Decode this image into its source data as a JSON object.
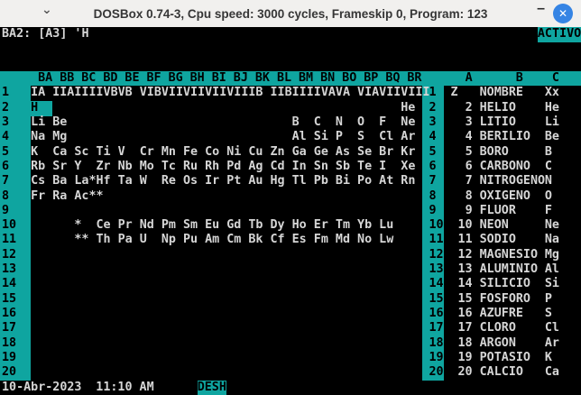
{
  "titlebar": {
    "title": "DOSBox 0.74-3, Cpu speed:    3000 cycles, Frameskip  0, Program:     123",
    "icons": {
      "menu_chevron": "⌄",
      "minimize": "–",
      "close": "✕"
    }
  },
  "control_panel": {
    "cell_reference": "BA2: [A3] 'H",
    "mode_indicator": "ACTIVO"
  },
  "left_window": {
    "col_headers": [
      "BA",
      "BB",
      "BC",
      "BD",
      "BE",
      "BF",
      "BG",
      "BH",
      "BI",
      "BJ",
      "BK",
      "BL",
      "BM",
      "BN",
      "BO",
      "BP",
      "BQ",
      "BR"
    ],
    "rows": [
      {
        "num": 1,
        "cells": [
          "IA",
          "IIA",
          "III",
          "IVB",
          "VB",
          "VIB",
          "VII",
          "VII",
          "VII",
          "VII",
          "IB",
          "IIB",
          "III",
          "IVA",
          "VA",
          "VIA",
          "VII",
          "VIII"
        ]
      },
      {
        "num": 2,
        "cursor_col": 0,
        "cells": [
          "H",
          "",
          "",
          "",
          "",
          "",
          "",
          "",
          "",
          "",
          "",
          "",
          "",
          "",
          "",
          "",
          "",
          "He"
        ]
      },
      {
        "num": 3,
        "cells": [
          "Li",
          "Be",
          "",
          "",
          "",
          "",
          "",
          "",
          "",
          "",
          "",
          "",
          "B",
          "C",
          "N",
          "O",
          "F",
          "Ne"
        ]
      },
      {
        "num": 4,
        "cells": [
          "Na",
          "Mg",
          "",
          "",
          "",
          "",
          "",
          "",
          "",
          "",
          "",
          "",
          "Al",
          "Si",
          "P",
          "S",
          "Cl",
          "Ar"
        ]
      },
      {
        "num": 5,
        "cells": [
          "K",
          "Ca",
          "Sc",
          "Ti",
          "V",
          "Cr",
          "Mn",
          "Fe",
          "Co",
          "Ni",
          "Cu",
          "Zn",
          "Ga",
          "Ge",
          "As",
          "Se",
          "Br",
          "Kr"
        ]
      },
      {
        "num": 6,
        "cells": [
          "Rb",
          "Sr",
          "Y",
          "Zr",
          "Nb",
          "Mo",
          "Tc",
          "Ru",
          "Rh",
          "Pd",
          "Ag",
          "Cd",
          "In",
          "Sn",
          "Sb",
          "Te",
          "I",
          "Xe"
        ]
      },
      {
        "num": 7,
        "cells": [
          "Cs",
          "Ba",
          "La*",
          "Hf",
          "Ta",
          "W",
          "Re",
          "Os",
          "Ir",
          "Pt",
          "Au",
          "Hg",
          "Tl",
          "Pb",
          "Bi",
          "Po",
          "At",
          "Rn"
        ]
      },
      {
        "num": 8,
        "cells": [
          "Fr",
          "Ra",
          "Ac*",
          "*"
        ]
      },
      {
        "num": 9,
        "cells": []
      },
      {
        "num": 10,
        "cells": [
          "",
          "",
          "*",
          "Ce",
          "Pr",
          "Nd",
          "Pm",
          "Sm",
          "Eu",
          "Gd",
          "Tb",
          "Dy",
          "Ho",
          "Er",
          "Tm",
          "Yb",
          "Lu"
        ]
      },
      {
        "num": 11,
        "cells": [
          "",
          "",
          "**",
          "Th",
          "Pa",
          "U",
          "Np",
          "Pu",
          "Am",
          "Cm",
          "Bk",
          "Cf",
          "Es",
          "Fm",
          "Md",
          "No",
          "Lw"
        ]
      },
      {
        "num": 12,
        "cells": []
      },
      {
        "num": 13,
        "cells": []
      },
      {
        "num": 14,
        "cells": []
      },
      {
        "num": 15,
        "cells": []
      },
      {
        "num": 16,
        "cells": []
      },
      {
        "num": 17,
        "cells": []
      },
      {
        "num": 18,
        "cells": []
      },
      {
        "num": 19,
        "cells": []
      },
      {
        "num": 20,
        "cells": []
      }
    ]
  },
  "right_window": {
    "col_headers": [
      "A",
      "B",
      "C"
    ],
    "rows": [
      {
        "num": 1,
        "header": true,
        "z": "Z",
        "name": "NOMBRE",
        "symbol": "Xx"
      },
      {
        "num": 2,
        "z": "2",
        "name": "HELIO",
        "symbol": "He"
      },
      {
        "num": 3,
        "z": "3",
        "name": "LITIO",
        "symbol": "Li"
      },
      {
        "num": 4,
        "z": "4",
        "name": "BERILIO",
        "symbol": "Be"
      },
      {
        "num": 5,
        "z": "5",
        "name": "BORO",
        "symbol": "B"
      },
      {
        "num": 6,
        "z": "6",
        "name": "CARBONO",
        "symbol": "C"
      },
      {
        "num": 7,
        "z": "7",
        "name": "NITROGENO",
        "symbol": "N"
      },
      {
        "num": 8,
        "z": "8",
        "name": "OXIGENO",
        "symbol": "O"
      },
      {
        "num": 9,
        "z": "9",
        "name": "FLUOR",
        "symbol": "F"
      },
      {
        "num": 10,
        "z": "10",
        "name": "NEON",
        "symbol": "Ne"
      },
      {
        "num": 11,
        "z": "11",
        "name": "SODIO",
        "symbol": "Na"
      },
      {
        "num": 12,
        "z": "12",
        "name": "MAGNESIO",
        "symbol": "Mg"
      },
      {
        "num": 13,
        "z": "13",
        "name": "ALUMINIO",
        "symbol": "Al"
      },
      {
        "num": 14,
        "z": "14",
        "name": "SILICIO",
        "symbol": "Si"
      },
      {
        "num": 15,
        "z": "15",
        "name": "FOSFORO",
        "symbol": "P"
      },
      {
        "num": 16,
        "z": "16",
        "name": "AZUFRE",
        "symbol": "S"
      },
      {
        "num": 17,
        "z": "17",
        "name": "CLORO",
        "symbol": "Cl"
      },
      {
        "num": 18,
        "z": "18",
        "name": "ARGON",
        "symbol": "Ar"
      },
      {
        "num": 19,
        "z": "19",
        "name": "POTASIO",
        "symbol": "K"
      },
      {
        "num": 20,
        "z": "20",
        "name": "CALCIO",
        "symbol": "Ca"
      }
    ]
  },
  "status_bar": {
    "date": "10-Abr-2023",
    "time": "11:10 AM",
    "undo_indicator": "DESH"
  },
  "colors": {
    "teal": "#0FA5A0",
    "screen_text": "#D6D6D6",
    "screen_bg": "#000000",
    "titlebar_bg": "#F1F0EE",
    "titlebar_text": "#363636",
    "close_button": "#3584E4"
  }
}
